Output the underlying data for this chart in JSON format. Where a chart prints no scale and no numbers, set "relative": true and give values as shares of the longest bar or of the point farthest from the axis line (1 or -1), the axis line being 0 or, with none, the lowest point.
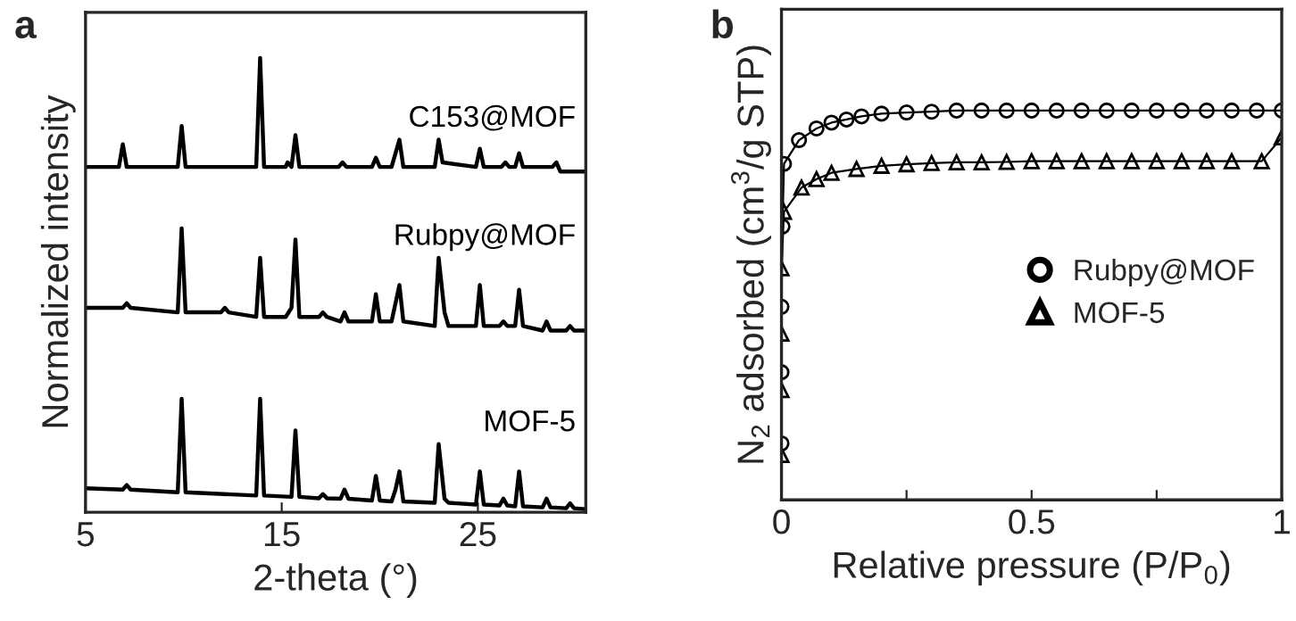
{
  "chart_data": [
    {
      "type": "line",
      "xlabel": "2-theta (°)",
      "ylabel": "Normalized intensity",
      "relative": true,
      "xlim": [
        5,
        30.5
      ],
      "xticks": [
        5,
        15,
        25
      ],
      "tick_labels": "x",
      "legend": false,
      "grid": false,
      "marker": "none",
      "annotations": [
        "a"
      ],
      "series": [
        {
          "name": "C153@MOF",
          "color": "#000000",
          "x": [
            5,
            6.7,
            6.9,
            7.1,
            9.7,
            9.9,
            10.1,
            13.7,
            13.9,
            14.1,
            15.2,
            15.3,
            15.5,
            15.7,
            15.9,
            17.9,
            18.1,
            18.3,
            19.6,
            19.8,
            20.0,
            20.6,
            20.8,
            21.0,
            21.2,
            22.8,
            23.0,
            23.2,
            24.9,
            25.1,
            25.3,
            26.2,
            26.4,
            26.6,
            26.9,
            27.1,
            27.3,
            28.8,
            29.0,
            29.2,
            30.5
          ],
          "values": [
            0.76,
            0.76,
            0.81,
            0.76,
            0.76,
            0.85,
            0.76,
            0.76,
            1,
            0.76,
            0.76,
            0.77,
            0.76,
            0.83,
            0.76,
            0.76,
            0.77,
            0.76,
            0.76,
            0.78,
            0.76,
            0.76,
            0.79,
            0.82,
            0.76,
            0.76,
            0.82,
            0.77,
            0.76,
            0.8,
            0.76,
            0.76,
            0.77,
            0.76,
            0.76,
            0.79,
            0.76,
            0.76,
            0.77,
            0.75,
            0.75
          ]
        },
        {
          "name": "Rubpy@MOF",
          "color": "#000000",
          "x": [
            5,
            6.9,
            7.1,
            7.3,
            9.7,
            9.9,
            10.1,
            11.9,
            12.1,
            12.3,
            13.7,
            13.9,
            14.1,
            15.2,
            15.5,
            15.7,
            15.9,
            16.9,
            17.1,
            17.3,
            18.0,
            18.2,
            18.4,
            19.6,
            19.8,
            20.0,
            20.6,
            20.8,
            21.0,
            21.2,
            22.8,
            23.0,
            23.3,
            23.5,
            24.9,
            25.1,
            25.3,
            26.1,
            26.3,
            26.5,
            26.9,
            27.1,
            27.3,
            28.3,
            28.5,
            28.7,
            29.5,
            29.7,
            29.9,
            30.5
          ],
          "values": [
            0.45,
            0.45,
            0.46,
            0.45,
            0.44,
            0.625,
            0.44,
            0.44,
            0.45,
            0.44,
            0.43,
            0.56,
            0.43,
            0.43,
            0.45,
            0.6,
            0.43,
            0.43,
            0.44,
            0.43,
            0.42,
            0.44,
            0.42,
            0.42,
            0.48,
            0.42,
            0.42,
            0.46,
            0.5,
            0.42,
            0.41,
            0.56,
            0.44,
            0.41,
            0.41,
            0.5,
            0.41,
            0.41,
            0.42,
            0.41,
            0.41,
            0.49,
            0.41,
            0.4,
            0.42,
            0.4,
            0.4,
            0.41,
            0.4,
            0.4
          ]
        },
        {
          "name": "MOF-5",
          "color": "#000000",
          "x": [
            5,
            6.9,
            7.1,
            7.3,
            9.7,
            9.9,
            10.1,
            13.7,
            13.9,
            14.1,
            15.5,
            15.7,
            15.9,
            16.9,
            17.1,
            17.3,
            18.0,
            18.2,
            18.4,
            19.6,
            19.8,
            20.0,
            20.6,
            20.8,
            21.0,
            21.2,
            22.8,
            23.0,
            23.3,
            23.5,
            24.9,
            25.1,
            25.3,
            26.1,
            26.3,
            26.5,
            26.9,
            27.1,
            27.3,
            28.3,
            28.5,
            28.7,
            29.5,
            29.7,
            29.9,
            30.5
          ],
          "values": [
            0.053,
            0.05,
            0.06,
            0.05,
            0.044,
            0.25,
            0.044,
            0.037,
            0.25,
            0.037,
            0.034,
            0.18,
            0.034,
            0.031,
            0.04,
            0.031,
            0.03,
            0.05,
            0.03,
            0.026,
            0.08,
            0.026,
            0.024,
            0.05,
            0.09,
            0.024,
            0.021,
            0.15,
            0.03,
            0.021,
            0.017,
            0.09,
            0.017,
            0.015,
            0.03,
            0.015,
            0.013,
            0.09,
            0.013,
            0.011,
            0.03,
            0.011,
            0.009,
            0.02,
            0.009,
            0.007
          ]
        }
      ]
    },
    {
      "type": "line",
      "xlabel": "Relative pressure (P/P$_{0}$)",
      "ylabel": "N$_{2}$ adsorbed (cm$^{3}$/g STP)",
      "relative": true,
      "xlim": [
        0,
        1
      ],
      "xticks": [
        0,
        {
          "value": 0.25,
          "label": null
        },
        0.5,
        {
          "value": 0.75,
          "label": null
        },
        1
      ],
      "tick_labels": "x",
      "legend": "center right",
      "grid": false,
      "annotations": [
        "b"
      ],
      "series": [
        {
          "name": "Rubpy@MOF",
          "color": "#000000",
          "marker": "circle",
          "x": [
            0,
            0,
            0,
            0.002,
            0.005,
            0.035,
            0.07,
            0.1,
            0.13,
            0.16,
            0.2,
            0.25,
            0.3,
            0.35,
            0.4,
            0.45,
            0.5,
            0.55,
            0.6,
            0.65,
            0.7,
            0.75,
            0.8,
            0.85,
            0.9,
            0.95,
            1.0
          ],
          "values": [
            0.145,
            0.328,
            0.496,
            0.702,
            0.863,
            0.924,
            0.954,
            0.969,
            0.977,
            0.985,
            0.992,
            0.995,
            0.997,
            1,
            1,
            1,
            1,
            1,
            1,
            1,
            1,
            1,
            1,
            1,
            1,
            1,
            1
          ]
        },
        {
          "name": "MOF-5",
          "color": "#000000",
          "marker": "triangle",
          "x": [
            0,
            0,
            0,
            0,
            0.005,
            0.04,
            0.07,
            0.1,
            0.15,
            0.2,
            0.25,
            0.3,
            0.35,
            0.4,
            0.45,
            0.5,
            0.55,
            0.6,
            0.65,
            0.7,
            0.75,
            0.8,
            0.85,
            0.9,
            0.96,
            1.0
          ],
          "values": [
            0.115,
            0.282,
            0.427,
            0.595,
            0.74,
            0.802,
            0.824,
            0.84,
            0.85,
            0.858,
            0.862,
            0.865,
            0.867,
            0.867,
            0.868,
            0.87,
            0.87,
            0.87,
            0.87,
            0.87,
            0.87,
            0.87,
            0.87,
            0.87,
            0.87,
            0.931
          ]
        }
      ]
    }
  ]
}
